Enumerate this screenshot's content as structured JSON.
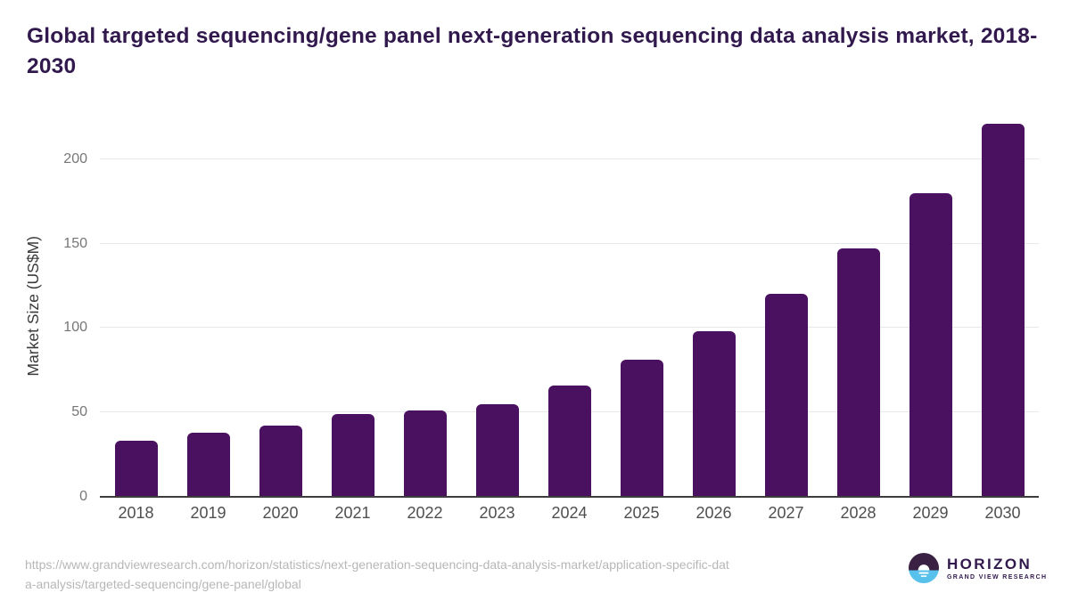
{
  "title": "Global targeted sequencing/gene panel next-generation sequencing data analysis market, 2018-2030",
  "chart_data": {
    "type": "bar",
    "categories": [
      "2018",
      "2019",
      "2020",
      "2021",
      "2022",
      "2023",
      "2024",
      "2025",
      "2026",
      "2027",
      "2028",
      "2029",
      "2030"
    ],
    "values": [
      33,
      38,
      42,
      49,
      51,
      55,
      66,
      81,
      98,
      120,
      147,
      180,
      221
    ],
    "title": "Global targeted sequencing/gene panel next-generation sequencing data analysis market, 2018-2030",
    "xlabel": "",
    "ylabel": "Market Size (US$M)",
    "yticks": [
      0,
      50,
      100,
      150,
      200
    ],
    "ylim": [
      0,
      225
    ],
    "grid": true,
    "legend": false,
    "bar_color": "#4a1161",
    "grid_color": "#e8e8e8",
    "axis_line_color": "#3d3d3d"
  },
  "footer": {
    "source_url": "https://www.grandviewresearch.com/horizon/statistics/next-generation-sequencing-data-analysis-market/application-specific-data-analysis/targeted-sequencing/gene-panel/global",
    "source_url_lines": [
      "https://www.grandviewresearch.com/horizon/statistics/next-generation-sequencing-data-analysis-market/application-specific-dat",
      "a-analysis/targeted-sequencing/gene-panel/global"
    ]
  },
  "logo": {
    "brand": "HORIZON",
    "tagline": "GRAND VIEW RESEARCH",
    "brand_color": "#31194d",
    "circle_top_color": "#3a2144",
    "circle_bottom_color": "#58c1eb",
    "sun_color": "#ffffff"
  },
  "colors": {
    "title": "#31194d",
    "background": "#ffffff"
  }
}
